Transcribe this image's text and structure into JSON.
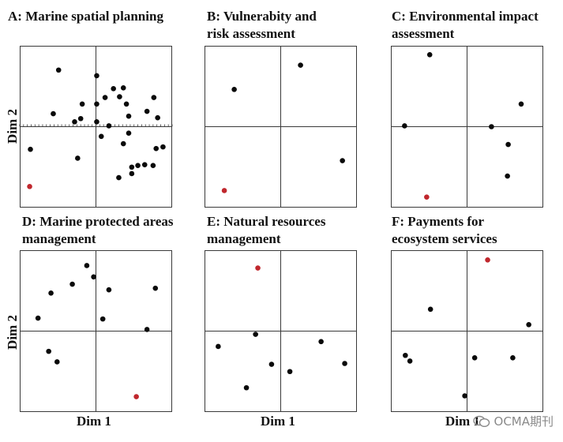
{
  "chart_data": [
    {
      "type": "scatter",
      "title": "A: Marine spatial planning",
      "ylabel": "Dim 2",
      "xlabel": "",
      "xlim": [
        -1,
        1
      ],
      "ylim": [
        -1,
        1
      ],
      "ticks": true,
      "points": [
        {
          "x": -0.49,
          "y": 0.7,
          "color": "black"
        },
        {
          "x": 0.01,
          "y": 0.63,
          "color": "black"
        },
        {
          "x": -0.56,
          "y": 0.16,
          "color": "black"
        },
        {
          "x": -0.18,
          "y": 0.28,
          "color": "black"
        },
        {
          "x": -0.2,
          "y": 0.1,
          "color": "black"
        },
        {
          "x": -0.28,
          "y": 0.06,
          "color": "black"
        },
        {
          "x": 0.01,
          "y": 0.28,
          "color": "black"
        },
        {
          "x": 0.12,
          "y": 0.36,
          "color": "black"
        },
        {
          "x": 0.23,
          "y": 0.47,
          "color": "black"
        },
        {
          "x": 0.36,
          "y": 0.48,
          "color": "black"
        },
        {
          "x": 0.31,
          "y": 0.37,
          "color": "black"
        },
        {
          "x": 0.4,
          "y": 0.28,
          "color": "black"
        },
        {
          "x": 0.43,
          "y": 0.13,
          "color": "black"
        },
        {
          "x": 0.01,
          "y": 0.06,
          "color": "black"
        },
        {
          "x": 0.17,
          "y": 0.01,
          "color": "black"
        },
        {
          "x": 0.43,
          "y": -0.08,
          "color": "black"
        },
        {
          "x": 0.76,
          "y": 0.36,
          "color": "black"
        },
        {
          "x": 0.67,
          "y": 0.19,
          "color": "black"
        },
        {
          "x": 0.81,
          "y": 0.11,
          "color": "black"
        },
        {
          "x": 0.07,
          "y": -0.12,
          "color": "black"
        },
        {
          "x": 0.36,
          "y": -0.21,
          "color": "black"
        },
        {
          "x": 0.79,
          "y": -0.27,
          "color": "black"
        },
        {
          "x": 0.88,
          "y": -0.25,
          "color": "black"
        },
        {
          "x": -0.86,
          "y": -0.28,
          "color": "black"
        },
        {
          "x": -0.24,
          "y": -0.39,
          "color": "black"
        },
        {
          "x": 0.55,
          "y": -0.48,
          "color": "black"
        },
        {
          "x": 0.64,
          "y": -0.47,
          "color": "black"
        },
        {
          "x": 0.47,
          "y": -0.5,
          "color": "black"
        },
        {
          "x": 0.75,
          "y": -0.48,
          "color": "black"
        },
        {
          "x": 0.47,
          "y": -0.58,
          "color": "black"
        },
        {
          "x": 0.3,
          "y": -0.63,
          "color": "black"
        },
        {
          "x": -0.87,
          "y": -0.74,
          "color": "red"
        }
      ]
    },
    {
      "type": "scatter",
      "title": "B: Vulnerabity and\nrisk assessment",
      "ylabel": "",
      "xlabel": "",
      "xlim": [
        -1,
        1
      ],
      "ylim": [
        -1,
        1
      ],
      "ticks": false,
      "points": [
        {
          "x": -0.61,
          "y": 0.46,
          "color": "black"
        },
        {
          "x": 0.26,
          "y": 0.76,
          "color": "black"
        },
        {
          "x": 0.81,
          "y": -0.42,
          "color": "black"
        },
        {
          "x": -0.74,
          "y": -0.79,
          "color": "red"
        }
      ]
    },
    {
      "type": "scatter",
      "title": "C: Environmental impact\nassessment",
      "ylabel": "",
      "xlabel": "",
      "xlim": [
        -1,
        1
      ],
      "ylim": [
        -1,
        1
      ],
      "ticks": false,
      "points": [
        {
          "x": -0.49,
          "y": 0.89,
          "color": "black"
        },
        {
          "x": -0.82,
          "y": 0.01,
          "color": "black"
        },
        {
          "x": 0.71,
          "y": 0.28,
          "color": "black"
        },
        {
          "x": 0.32,
          "y": 0.0,
          "color": "black"
        },
        {
          "x": 0.54,
          "y": -0.22,
          "color": "black"
        },
        {
          "x": 0.53,
          "y": -0.61,
          "color": "black"
        },
        {
          "x": -0.53,
          "y": -0.87,
          "color": "red"
        }
      ]
    },
    {
      "type": "scatter",
      "title": "D: Marine protected areas\nmanagement",
      "ylabel": "Dim 2",
      "xlabel": "Dim 1",
      "xlim": [
        -1,
        1
      ],
      "ylim": [
        -1,
        1
      ],
      "ticks": false,
      "points": [
        {
          "x": -0.12,
          "y": 0.81,
          "color": "black"
        },
        {
          "x": -0.03,
          "y": 0.67,
          "color": "black"
        },
        {
          "x": -0.31,
          "y": 0.58,
          "color": "black"
        },
        {
          "x": -0.59,
          "y": 0.47,
          "color": "black"
        },
        {
          "x": 0.17,
          "y": 0.51,
          "color": "black"
        },
        {
          "x": 0.78,
          "y": 0.53,
          "color": "black"
        },
        {
          "x": -0.76,
          "y": 0.16,
          "color": "black"
        },
        {
          "x": 0.09,
          "y": 0.15,
          "color": "black"
        },
        {
          "x": 0.67,
          "y": 0.02,
          "color": "black"
        },
        {
          "x": -0.62,
          "y": -0.25,
          "color": "black"
        },
        {
          "x": -0.51,
          "y": -0.38,
          "color": "black"
        },
        {
          "x": 0.53,
          "y": -0.81,
          "color": "red"
        }
      ]
    },
    {
      "type": "scatter",
      "title": "E: Natural resources\nmanagement",
      "ylabel": "",
      "xlabel": "Dim 1",
      "xlim": [
        -1,
        1
      ],
      "ylim": [
        -1,
        1
      ],
      "ticks": false,
      "points": [
        {
          "x": -0.3,
          "y": 0.78,
          "color": "red"
        },
        {
          "x": -0.33,
          "y": -0.04,
          "color": "black"
        },
        {
          "x": -0.82,
          "y": -0.19,
          "color": "black"
        },
        {
          "x": 0.53,
          "y": -0.13,
          "color": "black"
        },
        {
          "x": 0.84,
          "y": -0.4,
          "color": "black"
        },
        {
          "x": -0.12,
          "y": -0.41,
          "color": "black"
        },
        {
          "x": 0.12,
          "y": -0.5,
          "color": "black"
        },
        {
          "x": -0.45,
          "y": -0.7,
          "color": "black"
        }
      ]
    },
    {
      "type": "scatter",
      "title": "F: Payments for\necosystem services",
      "ylabel": "",
      "xlabel": "Dim 1",
      "xlim": [
        -1,
        1
      ],
      "ylim": [
        -1,
        1
      ],
      "ticks": false,
      "points": [
        {
          "x": 0.27,
          "y": 0.88,
          "color": "red"
        },
        {
          "x": -0.48,
          "y": 0.27,
          "color": "black"
        },
        {
          "x": 0.81,
          "y": 0.08,
          "color": "black"
        },
        {
          "x": -0.81,
          "y": -0.3,
          "color": "black"
        },
        {
          "x": -0.75,
          "y": -0.37,
          "color": "black"
        },
        {
          "x": 0.1,
          "y": -0.33,
          "color": "black"
        },
        {
          "x": 0.6,
          "y": -0.33,
          "color": "black"
        },
        {
          "x": -0.03,
          "y": -0.8,
          "color": "black"
        }
      ]
    }
  ],
  "colors": {
    "black": "#0a0a0a",
    "red": "#c0272d",
    "frame": "#3a3a3a"
  },
  "watermark": {
    "text": "OCMA期刊",
    "icon": "wechat-icon"
  }
}
